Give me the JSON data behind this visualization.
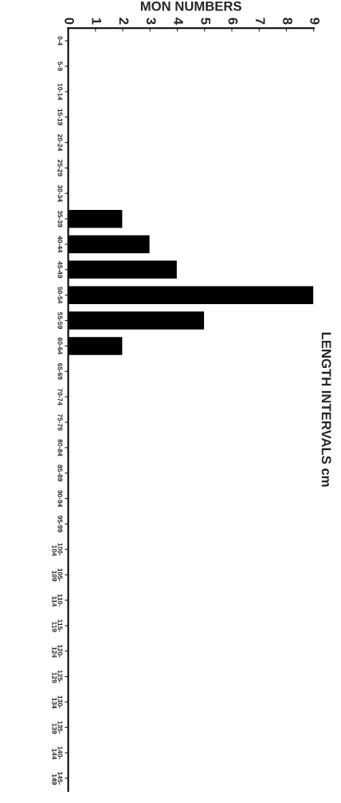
{
  "chart_data": {
    "type": "bar",
    "orientation": "horizontal",
    "xlabel": "MON NUMBERS",
    "ylabel": "LENGTH INTERVALS cm",
    "categories": [
      "0-4",
      "5-9",
      "10-14",
      "15-19",
      "20-24",
      "25-29",
      "30-34",
      "35-39",
      "40-44",
      "45-49",
      "50-54",
      "55-59",
      "60-64",
      "65-69",
      "70-74",
      "75-79",
      "80-84",
      "85-89",
      "90-94",
      "95-99",
      "100-\n104",
      "105-\n109",
      "110-\n114",
      "115-\n119",
      "120-\n124",
      "125-\n129",
      "130-\n134",
      "135-\n139",
      "140-\n144",
      "145-\n149"
    ],
    "values": [
      0,
      0,
      0,
      0,
      0,
      0,
      0,
      2,
      3,
      4,
      9,
      5,
      2,
      0,
      0,
      0,
      0,
      0,
      0,
      0,
      0,
      0,
      0,
      0,
      0,
      0,
      0,
      0,
      0,
      0
    ],
    "color": "#000000",
    "xlim": [
      0,
      9
    ],
    "xticks": [
      0,
      1,
      2,
      3,
      4,
      5,
      6,
      7,
      8,
      9
    ],
    "grid": false,
    "legend": false
  }
}
